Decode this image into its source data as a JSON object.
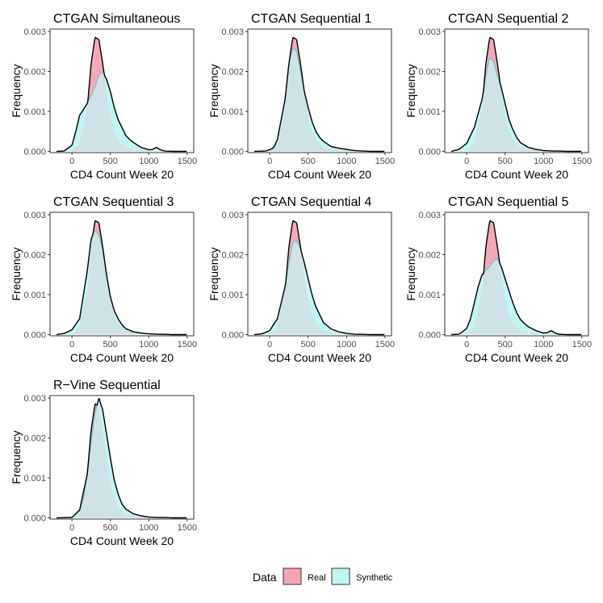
{
  "legend": {
    "title": "Data",
    "items": [
      {
        "label": "Real",
        "color": "#F4A3B5"
      },
      {
        "label": "Synthetic",
        "color": "#BFF5F5"
      }
    ]
  },
  "colors": {
    "real_fill": "#F4A3B5",
    "synthetic_fill": "#BFF5F5",
    "overlap_fill": "#CFE2E8",
    "real_line": "#000000",
    "synthetic_line": "#6CC7C7"
  },
  "chart_data": [
    {
      "type": "area",
      "title": "CTGAN Simultaneous",
      "xlabel": "CD4 Count Week 20",
      "ylabel": "Frequency",
      "xlim": [
        -200,
        1500
      ],
      "ylim": [
        0,
        0.003
      ],
      "x_ticks": [
        0,
        500,
        1000,
        1500
      ],
      "y_ticks": [
        "0.000",
        "0.001",
        "0.002",
        "0.003"
      ],
      "series": [
        {
          "name": "Real",
          "x": [
            -200,
            0,
            100,
            200,
            250,
            300,
            350,
            400,
            450,
            500,
            550,
            600,
            650,
            700,
            800,
            900,
            1000,
            1100,
            1200,
            1300,
            1500
          ],
          "values": [
            0,
            1e-05,
            0.0002,
            0.0011,
            0.0022,
            0.00285,
            0.0028,
            0.0022,
            0.0015,
            0.0009,
            0.0005,
            0.0003,
            0.00018,
            0.0001,
            5e-05,
            3e-05,
            2e-05,
            1e-05,
            1e-05,
            0,
            0
          ]
        },
        {
          "name": "Synthetic",
          "x": [
            -200,
            -100,
            0,
            50,
            100,
            200,
            300,
            350,
            400,
            450,
            500,
            550,
            600,
            650,
            700,
            750,
            800,
            900,
            1000,
            1050,
            1100,
            1150,
            1200,
            1300,
            1500
          ],
          "values": [
            0,
            1e-05,
            0.00015,
            0.0005,
            0.0009,
            0.0012,
            0.0016,
            0.0019,
            0.002,
            0.0018,
            0.0015,
            0.0011,
            0.0008,
            0.0006,
            0.0004,
            0.0003,
            0.00022,
            0.0001,
            4e-05,
            5e-05,
            0.0001,
            4e-05,
            1e-05,
            0,
            0
          ]
        }
      ]
    },
    {
      "type": "area",
      "title": "CTGAN Sequential 1",
      "xlabel": "CD4 Count Week 20",
      "ylabel": "Frequency",
      "xlim": [
        -200,
        1500
      ],
      "ylim": [
        0,
        0.003
      ],
      "x_ticks": [
        0,
        500,
        1000,
        1500
      ],
      "y_ticks": [
        "0.000",
        "0.001",
        "0.002",
        "0.003"
      ],
      "series": [
        {
          "name": "Real",
          "x": [
            -200,
            0,
            100,
            200,
            250,
            300,
            350,
            400,
            450,
            500,
            550,
            600,
            650,
            700,
            800,
            900,
            1000,
            1100,
            1200,
            1300,
            1500
          ],
          "values": [
            0,
            1e-05,
            0.0002,
            0.0011,
            0.0022,
            0.00285,
            0.0028,
            0.0022,
            0.0015,
            0.0009,
            0.0005,
            0.0003,
            0.00018,
            0.0001,
            5e-05,
            3e-05,
            2e-05,
            1e-05,
            1e-05,
            0,
            0
          ]
        },
        {
          "name": "Synthetic",
          "x": [
            -200,
            -50,
            50,
            100,
            200,
            250,
            300,
            350,
            400,
            450,
            500,
            550,
            600,
            650,
            700,
            800,
            900,
            1000,
            1100,
            1200,
            1300,
            1500
          ],
          "values": [
            0,
            1e-05,
            8e-05,
            0.0003,
            0.0013,
            0.0022,
            0.0026,
            0.0025,
            0.002,
            0.0015,
            0.0011,
            0.00075,
            0.0005,
            0.00035,
            0.00025,
            0.00012,
            8e-05,
            5e-05,
            2e-05,
            1e-05,
            0,
            0
          ]
        }
      ]
    },
    {
      "type": "area",
      "title": "CTGAN Sequential 2",
      "xlabel": "CD4 Count Week 20",
      "ylabel": "Frequency",
      "xlim": [
        -200,
        1500
      ],
      "ylim": [
        0,
        0.003
      ],
      "x_ticks": [
        0,
        500,
        1000,
        1500
      ],
      "y_ticks": [
        "0.000",
        "0.001",
        "0.002",
        "0.003"
      ],
      "series": [
        {
          "name": "Real",
          "x": [
            -200,
            0,
            100,
            200,
            250,
            300,
            350,
            400,
            450,
            500,
            550,
            600,
            650,
            700,
            800,
            900,
            1000,
            1100,
            1200,
            1300,
            1500
          ],
          "values": [
            0,
            1e-05,
            0.0002,
            0.0011,
            0.0022,
            0.00285,
            0.0028,
            0.0022,
            0.0015,
            0.0009,
            0.0005,
            0.0003,
            0.00018,
            0.0001,
            5e-05,
            3e-05,
            2e-05,
            1e-05,
            1e-05,
            0,
            0
          ]
        },
        {
          "name": "Synthetic",
          "x": [
            -200,
            -100,
            0,
            100,
            200,
            250,
            300,
            350,
            400,
            450,
            500,
            550,
            600,
            650,
            700,
            800,
            900,
            1000,
            1100,
            1200,
            1500
          ],
          "values": [
            0,
            5e-05,
            0.0002,
            0.0006,
            0.0013,
            0.0019,
            0.00235,
            0.00225,
            0.0019,
            0.0016,
            0.0012,
            0.0008,
            0.00055,
            0.00035,
            0.00022,
            0.0001,
            5e-05,
            2e-05,
            1e-05,
            0,
            0
          ]
        }
      ]
    },
    {
      "type": "area",
      "title": "CTGAN Sequential 3",
      "xlabel": "CD4 Count Week 20",
      "ylabel": "Frequency",
      "xlim": [
        -200,
        1500
      ],
      "ylim": [
        0,
        0.003
      ],
      "x_ticks": [
        0,
        500,
        1000,
        1500
      ],
      "y_ticks": [
        "0.000",
        "0.001",
        "0.002",
        "0.003"
      ],
      "series": [
        {
          "name": "Real",
          "x": [
            -200,
            0,
            100,
            200,
            250,
            300,
            350,
            400,
            450,
            500,
            550,
            600,
            650,
            700,
            800,
            900,
            1000,
            1100,
            1200,
            1300,
            1500
          ],
          "values": [
            0,
            1e-05,
            0.0002,
            0.0011,
            0.0022,
            0.00285,
            0.0028,
            0.0022,
            0.0015,
            0.0009,
            0.0005,
            0.0003,
            0.00018,
            0.0001,
            5e-05,
            3e-05,
            2e-05,
            1e-05,
            1e-05,
            0,
            0
          ]
        },
        {
          "name": "Synthetic",
          "x": [
            -200,
            -100,
            0,
            100,
            200,
            250,
            300,
            350,
            400,
            450,
            500,
            550,
            600,
            650,
            700,
            800,
            900,
            1000,
            1100,
            1200,
            1500
          ],
          "values": [
            0,
            3e-05,
            0.00012,
            0.0004,
            0.0016,
            0.0024,
            0.0026,
            0.0025,
            0.0021,
            0.0015,
            0.00095,
            0.0006,
            0.0004,
            0.00025,
            0.00015,
            7e-05,
            4e-05,
            2e-05,
            1e-05,
            0,
            0
          ]
        }
      ]
    },
    {
      "type": "area",
      "title": "CTGAN Sequential 4",
      "xlabel": "CD4 Count Week 20",
      "ylabel": "Frequency",
      "xlim": [
        -200,
        1500
      ],
      "ylim": [
        0,
        0.003
      ],
      "x_ticks": [
        0,
        500,
        1000,
        1500
      ],
      "y_ticks": [
        "0.000",
        "0.001",
        "0.002",
        "0.003"
      ],
      "series": [
        {
          "name": "Real",
          "x": [
            -200,
            0,
            100,
            200,
            250,
            300,
            350,
            400,
            450,
            500,
            550,
            600,
            650,
            700,
            800,
            900,
            1000,
            1100,
            1200,
            1300,
            1500
          ],
          "values": [
            0,
            1e-05,
            0.0002,
            0.0011,
            0.0022,
            0.00285,
            0.0028,
            0.0022,
            0.0015,
            0.0009,
            0.0005,
            0.0003,
            0.00018,
            0.0001,
            5e-05,
            3e-05,
            2e-05,
            1e-05,
            1e-05,
            0,
            0
          ]
        },
        {
          "name": "Synthetic",
          "x": [
            -200,
            -100,
            0,
            100,
            200,
            250,
            300,
            350,
            400,
            450,
            500,
            550,
            600,
            650,
            700,
            750,
            800,
            900,
            1000,
            1100,
            1200,
            1500
          ],
          "values": [
            0,
            2e-05,
            0.0001,
            0.0004,
            0.0012,
            0.0018,
            0.0023,
            0.00235,
            0.00215,
            0.0018,
            0.0014,
            0.001,
            0.0007,
            0.0005,
            0.0003,
            0.00022,
            0.00014,
            7e-05,
            3e-05,
            1e-05,
            0,
            0
          ]
        }
      ]
    },
    {
      "type": "area",
      "title": "CTGAN Sequential 5",
      "xlabel": "CD4 Count Week 20",
      "ylabel": "Frequency",
      "xlim": [
        -200,
        1500
      ],
      "ylim": [
        0,
        0.003
      ],
      "x_ticks": [
        0,
        500,
        1000,
        1500
      ],
      "y_ticks": [
        "0.000",
        "0.001",
        "0.002",
        "0.003"
      ],
      "series": [
        {
          "name": "Real",
          "x": [
            -200,
            0,
            100,
            200,
            250,
            300,
            350,
            400,
            450,
            500,
            550,
            600,
            650,
            700,
            800,
            900,
            1000,
            1100,
            1200,
            1300,
            1500
          ],
          "values": [
            0,
            1e-05,
            0.0002,
            0.0011,
            0.0022,
            0.00285,
            0.0028,
            0.0022,
            0.0015,
            0.0009,
            0.0005,
            0.0003,
            0.00018,
            0.0001,
            5e-05,
            3e-05,
            2e-05,
            1e-05,
            1e-05,
            0,
            0
          ]
        },
        {
          "name": "Synthetic",
          "x": [
            -200,
            -100,
            0,
            50,
            100,
            150,
            200,
            250,
            300,
            350,
            400,
            450,
            500,
            550,
            600,
            650,
            700,
            750,
            800,
            900,
            1000,
            1050,
            1100,
            1150,
            1200,
            1300,
            1500
          ],
          "values": [
            0,
            1e-05,
            0.00015,
            0.0004,
            0.0008,
            0.0012,
            0.0015,
            0.0016,
            0.0017,
            0.00185,
            0.0019,
            0.0017,
            0.0014,
            0.0011,
            0.0008,
            0.00055,
            0.00038,
            0.00028,
            0.0002,
            0.0001,
            4e-05,
            5e-05,
            0.0001,
            4e-05,
            1e-05,
            0,
            0
          ]
        }
      ]
    },
    {
      "type": "area",
      "title": "R−Vine Sequential",
      "xlabel": "CD4 Count Week 20",
      "ylabel": "Frequency",
      "xlim": [
        -200,
        1500
      ],
      "ylim": [
        0,
        0.003
      ],
      "x_ticks": [
        0,
        500,
        1000,
        1500
      ],
      "y_ticks": [
        "0.000",
        "0.001",
        "0.002",
        "0.003"
      ],
      "series": [
        {
          "name": "Real",
          "x": [
            -200,
            0,
            100,
            200,
            250,
            300,
            350,
            400,
            450,
            500,
            550,
            600,
            650,
            700,
            800,
            900,
            1000,
            1100,
            1200,
            1300,
            1500
          ],
          "values": [
            0,
            1e-05,
            0.0002,
            0.0011,
            0.0022,
            0.00285,
            0.0028,
            0.0022,
            0.0015,
            0.0009,
            0.0005,
            0.0003,
            0.00018,
            0.0001,
            5e-05,
            3e-05,
            2e-05,
            1e-05,
            1e-05,
            0,
            0
          ]
        },
        {
          "name": "Synthetic",
          "x": [
            -200,
            0,
            100,
            150,
            200,
            250,
            300,
            350,
            400,
            450,
            500,
            550,
            600,
            650,
            700,
            800,
            900,
            1000,
            1100,
            1200,
            1300,
            1500
          ],
          "values": [
            0,
            1e-05,
            0.00018,
            0.0005,
            0.0011,
            0.0019,
            0.0026,
            0.003,
            0.0027,
            0.0021,
            0.0015,
            0.00095,
            0.0006,
            0.00035,
            0.00022,
            0.0001,
            5e-05,
            2e-05,
            1e-05,
            1e-05,
            0,
            0
          ]
        }
      ]
    }
  ]
}
